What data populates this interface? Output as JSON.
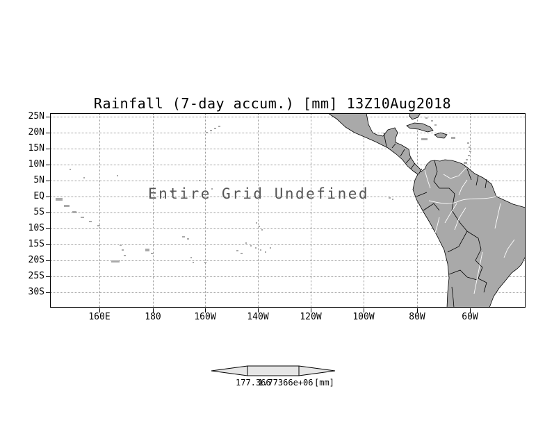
{
  "title": "Rainfall (7-day accum.) [mm] 13Z10Aug2018",
  "center_message": "Entire Grid Undefined",
  "axes": {
    "lat_labels": [
      "25N",
      "20N",
      "15N",
      "10N",
      "5N",
      "EQ",
      "5S",
      "10S",
      "15S",
      "20S",
      "25S",
      "30S"
    ],
    "lon_labels": [
      "160E",
      "180",
      "160W",
      "140W",
      "120W",
      "100W",
      "80W",
      "60W"
    ]
  },
  "colorbar": {
    "left_label": "177.366",
    "right_label": "1.77366e+06",
    "unit": "[mm]"
  },
  "colors": {
    "land": "#a9a9a9",
    "outline": "#000000",
    "grid_dots": "#999999",
    "message_text": "#555555"
  },
  "chart_data": {
    "type": "heatmap",
    "title": "Rainfall (7-day accum.) [mm] 13Z10Aug2018",
    "x_tick_labels": [
      "160E",
      "180",
      "160W",
      "140W",
      "120W",
      "100W",
      "80W",
      "60W"
    ],
    "y_tick_labels": [
      "25N",
      "20N",
      "15N",
      "10N",
      "5N",
      "EQ",
      "5S",
      "10S",
      "15S",
      "20S",
      "25S",
      "30S"
    ],
    "values": [],
    "data_status": "Entire Grid Undefined",
    "colorbar_labels": [
      "177.366",
      "1.77366e+06"
    ],
    "units": "mm",
    "grid": "dotted"
  }
}
